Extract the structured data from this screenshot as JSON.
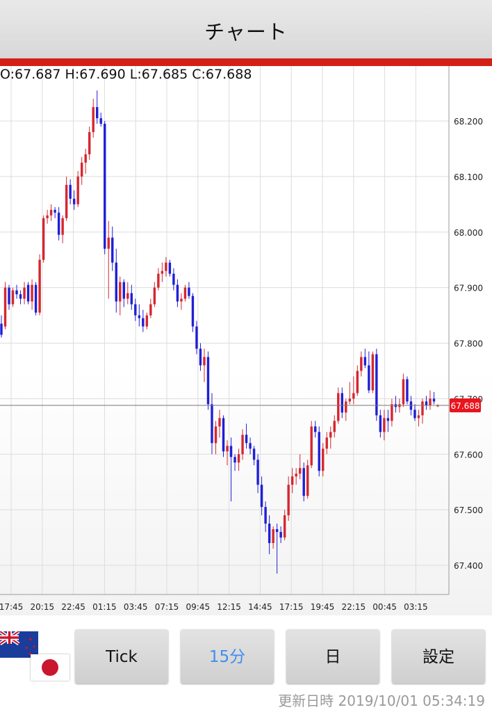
{
  "header": {
    "title": "チャート"
  },
  "ohlc": {
    "text": "O:67.687 H:67.690 L:67.685 C:67.688"
  },
  "buttons": {
    "tick": "Tick",
    "min15": "15分",
    "day": "日",
    "settings": "設定"
  },
  "footer": {
    "updated": "更新日時 2019/10/01 05:34:19"
  },
  "colors": {
    "up": "#d6262e",
    "down": "#1f1fd6",
    "accent": "#d32017",
    "price_tag": "#e8141e",
    "active_button_text": "#3e8ef0"
  },
  "icons": {
    "base_flag": "nz-flag-icon",
    "quote_flag": "jp-flag-icon"
  },
  "chart_data": {
    "type": "candlestick",
    "y_ticks": [
      "68.200",
      "68.100",
      "68.000",
      "67.900",
      "67.800",
      "67.700",
      "67.600",
      "67.500",
      "67.400"
    ],
    "ylim": [
      67.36,
      68.31
    ],
    "x_ticks": [
      "17:45",
      "20:15",
      "22:45",
      "01:15",
      "03:45",
      "07:15",
      "09:45",
      "12:15",
      "14:45",
      "17:15",
      "19:45",
      "22:15",
      "00:45",
      "03:15"
    ],
    "current_price": "67.688",
    "grid": true,
    "candles": [
      [
        67.835,
        67.85,
        67.81,
        67.815
      ],
      [
        67.83,
        67.91,
        67.825,
        67.9
      ],
      [
        67.9,
        67.905,
        67.86,
        67.87
      ],
      [
        67.87,
        67.9,
        67.865,
        67.895
      ],
      [
        67.895,
        67.905,
        67.88,
        67.888
      ],
      [
        67.888,
        67.895,
        67.87,
        67.88
      ],
      [
        67.88,
        67.91,
        67.87,
        67.9
      ],
      [
        67.905,
        67.91,
        67.87,
        67.875
      ],
      [
        67.875,
        67.915,
        67.86,
        67.905
      ],
      [
        67.905,
        67.91,
        67.85,
        67.855
      ],
      [
        67.855,
        67.96,
        67.85,
        67.95
      ],
      [
        67.95,
        68.03,
        67.945,
        68.025
      ],
      [
        68.025,
        68.04,
        68.015,
        68.03
      ],
      [
        68.03,
        68.05,
        68.02,
        68.04
      ],
      [
        68.04,
        68.045,
        68.025,
        68.035
      ],
      [
        68.035,
        68.045,
        67.985,
        67.995
      ],
      [
        67.995,
        68.03,
        67.98,
        68.025
      ],
      [
        68.025,
        68.1,
        68.02,
        68.085
      ],
      [
        68.085,
        68.095,
        68.05,
        68.06
      ],
      [
        68.06,
        68.075,
        68.04,
        68.05
      ],
      [
        68.05,
        68.11,
        68.045,
        68.1
      ],
      [
        68.1,
        68.135,
        68.085,
        68.125
      ],
      [
        68.125,
        68.15,
        68.105,
        68.14
      ],
      [
        68.14,
        68.19,
        68.13,
        68.18
      ],
      [
        68.18,
        68.24,
        68.17,
        68.225
      ],
      [
        68.225,
        68.255,
        68.195,
        68.205
      ],
      [
        68.205,
        68.215,
        68.19,
        68.195
      ],
      [
        68.195,
        68.2,
        67.96,
        67.97
      ],
      [
        67.97,
        68.02,
        67.88,
        67.99
      ],
      [
        67.99,
        68.01,
        67.93,
        67.945
      ],
      [
        67.945,
        67.97,
        67.855,
        67.875
      ],
      [
        67.875,
        67.92,
        67.85,
        67.91
      ],
      [
        67.91,
        67.915,
        67.865,
        67.88
      ],
      [
        67.88,
        67.91,
        67.87,
        67.89
      ],
      [
        67.89,
        67.905,
        67.86,
        67.87
      ],
      [
        67.87,
        67.88,
        67.84,
        67.85
      ],
      [
        67.85,
        67.87,
        67.83,
        67.845
      ],
      [
        67.845,
        67.86,
        67.82,
        67.83
      ],
      [
        67.83,
        67.855,
        67.825,
        67.85
      ],
      [
        67.85,
        67.88,
        67.845,
        67.87
      ],
      [
        67.87,
        67.91,
        67.865,
        67.9
      ],
      [
        67.9,
        67.935,
        67.895,
        67.925
      ],
      [
        67.925,
        67.945,
        67.91,
        67.93
      ],
      [
        67.93,
        67.955,
        67.92,
        67.945
      ],
      [
        67.945,
        67.95,
        67.92,
        67.925
      ],
      [
        67.925,
        67.935,
        67.895,
        67.905
      ],
      [
        67.905,
        67.915,
        67.865,
        67.875
      ],
      [
        67.875,
        67.89,
        67.86,
        67.88
      ],
      [
        67.88,
        67.905,
        67.875,
        67.9
      ],
      [
        67.9,
        67.91,
        67.88,
        67.885
      ],
      [
        67.885,
        67.89,
        67.82,
        67.83
      ],
      [
        67.83,
        67.84,
        67.78,
        67.79
      ],
      [
        67.79,
        67.8,
        67.75,
        67.76
      ],
      [
        67.76,
        67.79,
        67.73,
        67.775
      ],
      [
        67.775,
        67.785,
        67.68,
        67.69
      ],
      [
        67.69,
        67.71,
        67.6,
        67.62
      ],
      [
        67.62,
        67.66,
        67.6,
        67.65
      ],
      [
        67.65,
        67.68,
        67.63,
        67.665
      ],
      [
        67.665,
        67.67,
        67.595,
        67.605
      ],
      [
        67.605,
        67.625,
        67.58,
        67.615
      ],
      [
        67.615,
        67.63,
        67.515,
        67.595
      ],
      [
        67.595,
        67.6,
        67.57,
        67.585
      ],
      [
        67.585,
        67.61,
        67.57,
        67.6
      ],
      [
        67.6,
        67.645,
        67.59,
        67.635
      ],
      [
        67.635,
        67.655,
        67.61,
        67.62
      ],
      [
        67.62,
        67.63,
        67.6,
        67.61
      ],
      [
        67.61,
        67.615,
        67.58,
        67.59
      ],
      [
        67.59,
        67.6,
        67.53,
        67.545
      ],
      [
        67.545,
        67.56,
        67.49,
        67.505
      ],
      [
        67.505,
        67.515,
        67.46,
        67.475
      ],
      [
        67.475,
        67.49,
        67.42,
        67.44
      ],
      [
        67.44,
        67.47,
        67.43,
        67.465
      ],
      [
        67.465,
        67.475,
        67.385,
        67.46
      ],
      [
        67.46,
        67.47,
        67.44,
        67.45
      ],
      [
        67.45,
        67.5,
        67.445,
        67.49
      ],
      [
        67.49,
        67.56,
        67.48,
        67.545
      ],
      [
        67.545,
        67.575,
        67.53,
        67.56
      ],
      [
        67.56,
        67.575,
        67.545,
        67.565
      ],
      [
        67.565,
        67.6,
        67.555,
        67.575
      ],
      [
        67.575,
        67.585,
        67.515,
        67.525
      ],
      [
        67.525,
        67.59,
        67.52,
        67.58
      ],
      [
        67.58,
        67.66,
        67.575,
        67.65
      ],
      [
        67.65,
        67.66,
        67.63,
        67.64
      ],
      [
        67.64,
        67.65,
        67.56,
        67.57
      ],
      [
        67.57,
        67.62,
        67.56,
        67.61
      ],
      [
        67.61,
        67.64,
        67.6,
        67.63
      ],
      [
        67.63,
        67.65,
        67.61,
        67.64
      ],
      [
        67.64,
        67.67,
        67.63,
        67.66
      ],
      [
        67.66,
        67.72,
        67.655,
        67.71
      ],
      [
        67.71,
        67.72,
        67.665,
        67.675
      ],
      [
        67.675,
        67.7,
        67.66,
        67.695
      ],
      [
        67.695,
        67.73,
        67.69,
        67.7
      ],
      [
        67.7,
        67.74,
        67.69,
        67.71
      ],
      [
        67.71,
        67.76,
        67.705,
        67.75
      ],
      [
        67.75,
        67.785,
        67.74,
        67.775
      ],
      [
        67.775,
        67.79,
        67.755,
        67.76
      ],
      [
        67.76,
        67.785,
        67.71,
        67.715
      ],
      [
        67.715,
        67.785,
        67.71,
        67.78
      ],
      [
        67.78,
        67.79,
        67.66,
        67.67
      ],
      [
        67.67,
        67.68,
        67.63,
        67.64
      ],
      [
        67.64,
        67.68,
        67.625,
        67.665
      ],
      [
        67.665,
        67.68,
        67.64,
        67.66
      ],
      [
        67.66,
        67.7,
        67.65,
        67.69
      ],
      [
        67.69,
        67.705,
        67.675,
        67.685
      ],
      [
        67.685,
        67.7,
        67.675,
        67.69
      ],
      [
        67.69,
        67.745,
        67.685,
        67.735
      ],
      [
        67.735,
        67.74,
        67.69,
        67.695
      ],
      [
        67.695,
        67.705,
        67.67,
        67.68
      ],
      [
        67.68,
        67.69,
        67.66,
        67.665
      ],
      [
        67.665,
        67.68,
        67.65,
        67.67
      ],
      [
        67.67,
        67.7,
        67.655,
        67.695
      ],
      [
        67.695,
        67.705,
        67.68,
        67.688
      ],
      [
        67.688,
        67.715,
        67.68,
        67.7
      ],
      [
        67.7,
        67.712,
        67.69,
        67.695
      ],
      [
        67.687,
        67.69,
        67.685,
        67.688
      ]
    ]
  }
}
